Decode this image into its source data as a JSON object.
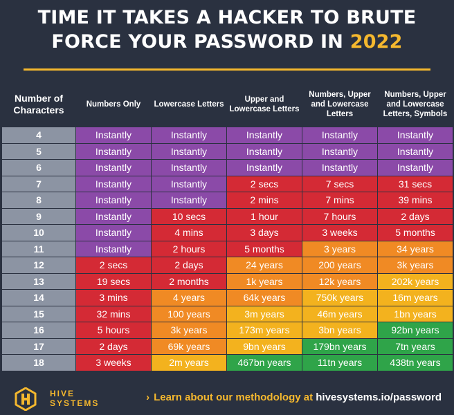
{
  "title": {
    "line1": "TIME IT TAKES A HACKER TO BRUTE",
    "line2": "FORCE YOUR PASSWORD IN ",
    "year": "2022"
  },
  "colors": {
    "background": "#2a3140",
    "accent": "#f5b82e",
    "instantly": "#8b4aa8",
    "red": "#d42a35",
    "orange": "#f08a24",
    "yellow": "#f3b21e",
    "green": "#2fa449"
  },
  "table": {
    "headers": [
      "Number of Characters",
      "Numbers Only",
      "Lowercase Letters",
      "Upper and Lowercase Letters",
      "Numbers, Upper and Lowercase Letters",
      "Numbers, Upper and Lowercase Letters, Symbols"
    ],
    "rows": [
      {
        "n": "4",
        "cells": [
          [
            "Instantly",
            "inst"
          ],
          [
            "Instantly",
            "inst"
          ],
          [
            "Instantly",
            "inst"
          ],
          [
            "Instantly",
            "inst"
          ],
          [
            "Instantly",
            "inst"
          ]
        ]
      },
      {
        "n": "5",
        "cells": [
          [
            "Instantly",
            "inst"
          ],
          [
            "Instantly",
            "inst"
          ],
          [
            "Instantly",
            "inst"
          ],
          [
            "Instantly",
            "inst"
          ],
          [
            "Instantly",
            "inst"
          ]
        ]
      },
      {
        "n": "6",
        "cells": [
          [
            "Instantly",
            "inst"
          ],
          [
            "Instantly",
            "inst"
          ],
          [
            "Instantly",
            "inst"
          ],
          [
            "Instantly",
            "inst"
          ],
          [
            "Instantly",
            "inst"
          ]
        ]
      },
      {
        "n": "7",
        "cells": [
          [
            "Instantly",
            "inst"
          ],
          [
            "Instantly",
            "inst"
          ],
          [
            "2 secs",
            "red"
          ],
          [
            "7 secs",
            "red"
          ],
          [
            "31 secs",
            "red"
          ]
        ]
      },
      {
        "n": "8",
        "cells": [
          [
            "Instantly",
            "inst"
          ],
          [
            "Instantly",
            "inst"
          ],
          [
            "2 mins",
            "red"
          ],
          [
            "7 mins",
            "red"
          ],
          [
            "39 mins",
            "red"
          ]
        ]
      },
      {
        "n": "9",
        "cells": [
          [
            "Instantly",
            "inst"
          ],
          [
            "10 secs",
            "red"
          ],
          [
            "1 hour",
            "red"
          ],
          [
            "7 hours",
            "red"
          ],
          [
            "2 days",
            "red"
          ]
        ]
      },
      {
        "n": "10",
        "cells": [
          [
            "Instantly",
            "inst"
          ],
          [
            "4 mins",
            "red"
          ],
          [
            "3 days",
            "red"
          ],
          [
            "3 weeks",
            "red"
          ],
          [
            "5 months",
            "red"
          ]
        ]
      },
      {
        "n": "11",
        "cells": [
          [
            "Instantly",
            "inst"
          ],
          [
            "2 hours",
            "red"
          ],
          [
            "5 months",
            "red"
          ],
          [
            "3 years",
            "org"
          ],
          [
            "34 years",
            "org"
          ]
        ]
      },
      {
        "n": "12",
        "cells": [
          [
            "2 secs",
            "red"
          ],
          [
            "2 days",
            "red"
          ],
          [
            "24 years",
            "org"
          ],
          [
            "200 years",
            "org"
          ],
          [
            "3k years",
            "org"
          ]
        ]
      },
      {
        "n": "13",
        "cells": [
          [
            "19 secs",
            "red"
          ],
          [
            "2 months",
            "red"
          ],
          [
            "1k years",
            "org"
          ],
          [
            "12k years",
            "org"
          ],
          [
            "202k years",
            "yel"
          ]
        ]
      },
      {
        "n": "14",
        "cells": [
          [
            "3 mins",
            "red"
          ],
          [
            "4 years",
            "org"
          ],
          [
            "64k years",
            "org"
          ],
          [
            "750k years",
            "yel"
          ],
          [
            "16m years",
            "yel"
          ]
        ]
      },
      {
        "n": "15",
        "cells": [
          [
            "32 mins",
            "red"
          ],
          [
            "100 years",
            "org"
          ],
          [
            "3m years",
            "yel"
          ],
          [
            "46m years",
            "yel"
          ],
          [
            "1bn years",
            "yel"
          ]
        ]
      },
      {
        "n": "16",
        "cells": [
          [
            "5 hours",
            "red"
          ],
          [
            "3k years",
            "org"
          ],
          [
            "173m years",
            "yel"
          ],
          [
            "3bn years",
            "yel"
          ],
          [
            "92bn years",
            "grn"
          ]
        ]
      },
      {
        "n": "17",
        "cells": [
          [
            "2 days",
            "red"
          ],
          [
            "69k years",
            "org"
          ],
          [
            "9bn years",
            "yel"
          ],
          [
            "179bn years",
            "grn"
          ],
          [
            "7tn years",
            "grn"
          ]
        ]
      },
      {
        "n": "18",
        "cells": [
          [
            "3 weeks",
            "red"
          ],
          [
            "2m years",
            "yel"
          ],
          [
            "467bn years",
            "grn"
          ],
          [
            "11tn years",
            "grn"
          ],
          [
            "438tn years",
            "grn"
          ]
        ]
      }
    ]
  },
  "footer": {
    "logo_line1": "HIVE",
    "logo_line2": "SYSTEMS",
    "link_prefix": "Learn about our methodology at ",
    "link_url": "hivesystems.io/password"
  }
}
